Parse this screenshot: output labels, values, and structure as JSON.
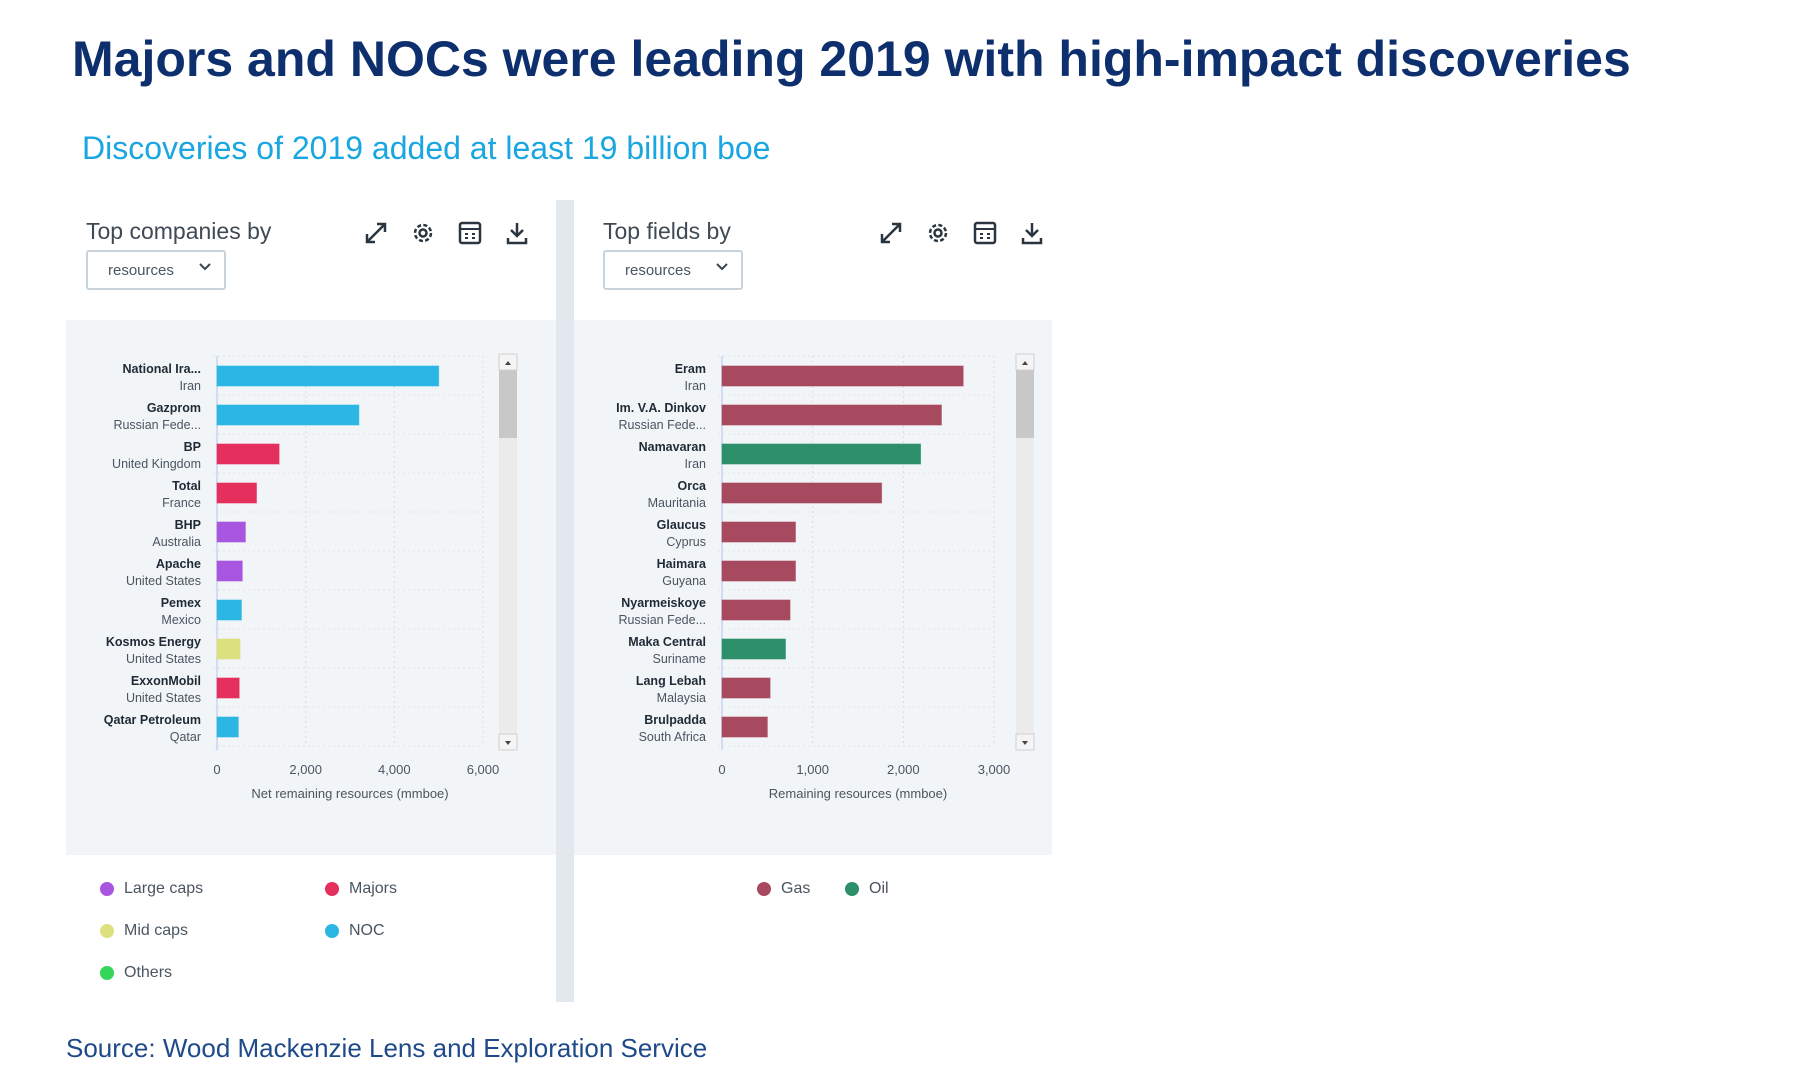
{
  "title": "Majors and NOCs were leading 2019 with high-impact discoveries",
  "subtitle": "Discoveries of 2019 added at least 19 billion boe",
  "source": "Source: Wood Mackenzie Lens and Exploration Service",
  "colors": {
    "large_caps": "#a855e0",
    "majors": "#e52f5c",
    "mid_caps": "#dde07e",
    "noc": "#2cb6e3",
    "others": "#36d65a",
    "gas": "#a84a5f",
    "oil": "#2e8f6b"
  },
  "panels": [
    {
      "title": "Top companies by",
      "dropdown": "resources",
      "tools": [
        "expand-icon",
        "gear-icon",
        "table-icon",
        "download-icon"
      ],
      "legend": [
        {
          "label": "Large caps",
          "color_key": "large_caps"
        },
        {
          "label": "Majors",
          "color_key": "majors"
        },
        {
          "label": "Mid caps",
          "color_key": "mid_caps"
        },
        {
          "label": "NOC",
          "color_key": "noc"
        },
        {
          "label": "Others",
          "color_key": "others"
        }
      ]
    },
    {
      "title": "Top fields by",
      "dropdown": "resources",
      "tools": [
        "expand-icon",
        "gear-icon",
        "table-icon",
        "download-icon"
      ],
      "legend": [
        {
          "label": "Gas",
          "color_key": "gas"
        },
        {
          "label": "Oil",
          "color_key": "oil"
        }
      ]
    }
  ],
  "chart_data": [
    {
      "type": "bar",
      "orientation": "horizontal",
      "title": "Top companies by resources",
      "xlabel": "Net remaining resources (mmboe)",
      "ylabel": "",
      "xlim": [
        0,
        6000
      ],
      "xticks": [
        "0",
        "2,000",
        "4,000",
        "6,000"
      ],
      "xtick_values": [
        0,
        2000,
        4000,
        6000
      ],
      "grid": true,
      "legend_position": "bottom",
      "categories": [
        {
          "name": "National Ira...",
          "sub": "Iran",
          "value": 5000,
          "group": "noc"
        },
        {
          "name": "Gazprom",
          "sub": "Russian Fede...",
          "value": 3200,
          "group": "noc"
        },
        {
          "name": "BP",
          "sub": "United Kingdom",
          "value": 1400,
          "group": "majors"
        },
        {
          "name": "Total",
          "sub": "France",
          "value": 890,
          "group": "majors"
        },
        {
          "name": "BHP",
          "sub": "Australia",
          "value": 640,
          "group": "large_caps"
        },
        {
          "name": "Apache",
          "sub": "United States",
          "value": 570,
          "group": "large_caps"
        },
        {
          "name": "Pemex",
          "sub": "Mexico",
          "value": 550,
          "group": "noc"
        },
        {
          "name": "Kosmos Energy",
          "sub": "United States",
          "value": 520,
          "group": "mid_caps"
        },
        {
          "name": "ExxonMobil",
          "sub": "United States",
          "value": 500,
          "group": "majors"
        },
        {
          "name": "Qatar Petroleum",
          "sub": "Qatar",
          "value": 480,
          "group": "noc"
        }
      ]
    },
    {
      "type": "bar",
      "orientation": "horizontal",
      "title": "Top fields by resources",
      "xlabel": "Remaining resources (mmboe)",
      "ylabel": "",
      "xlim": [
        0,
        3000
      ],
      "xticks": [
        "0",
        "1,000",
        "2,000",
        "3,000"
      ],
      "xtick_values": [
        0,
        1000,
        2000,
        3000
      ],
      "grid": true,
      "legend_position": "bottom",
      "categories": [
        {
          "name": "Eram",
          "sub": "Iran",
          "value": 2660,
          "group": "gas"
        },
        {
          "name": "Im. V.A. Dinkov",
          "sub": "Russian Fede...",
          "value": 2420,
          "group": "gas"
        },
        {
          "name": "Namavaran",
          "sub": "Iran",
          "value": 2190,
          "group": "oil"
        },
        {
          "name": "Orca",
          "sub": "Mauritania",
          "value": 1760,
          "group": "gas"
        },
        {
          "name": "Glaucus",
          "sub": "Cyprus",
          "value": 810,
          "group": "gas"
        },
        {
          "name": "Haimara",
          "sub": "Guyana",
          "value": 810,
          "group": "gas"
        },
        {
          "name": "Nyarmeiskoye",
          "sub": "Russian Fede...",
          "value": 750,
          "group": "gas"
        },
        {
          "name": "Maka Central",
          "sub": "Suriname",
          "value": 700,
          "group": "oil"
        },
        {
          "name": "Lang Lebah",
          "sub": "Malaysia",
          "value": 530,
          "group": "gas"
        },
        {
          "name": "Brulpadda",
          "sub": "South Africa",
          "value": 500,
          "group": "gas"
        }
      ]
    }
  ]
}
